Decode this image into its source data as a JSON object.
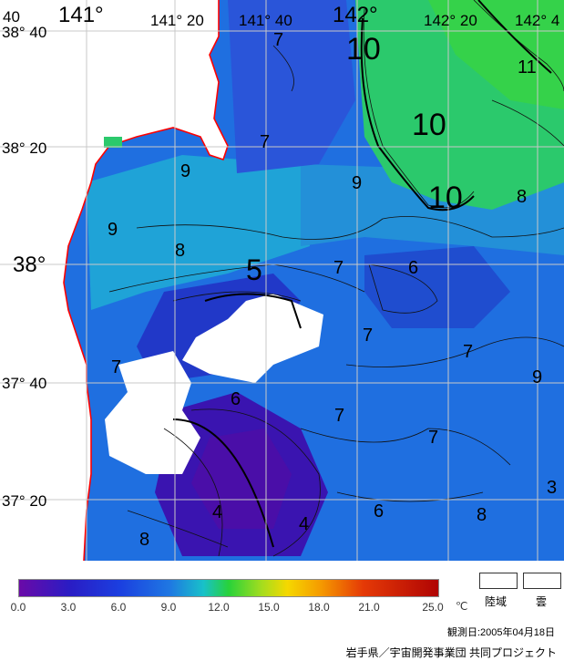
{
  "map": {
    "lon_labels": [
      "141°",
      "141° 20",
      "141° 40",
      "142°",
      "142° 20",
      "142° 4"
    ],
    "lat_labels": [
      "38° 40",
      "38° 20",
      "38°",
      "37° 40",
      "37° 20"
    ],
    "corner_label": "40",
    "contour_labels": [
      "10",
      "10",
      "10",
      "11",
      "9",
      "9",
      "9",
      "8",
      "8",
      "8",
      "7",
      "7",
      "7",
      "7",
      "7",
      "7",
      "7",
      "7",
      "6",
      "6",
      "6",
      "5",
      "4",
      "4",
      "3",
      "9",
      "8"
    ]
  },
  "legend": {
    "ticks": [
      "0.0",
      "3.0",
      "6.0",
      "9.0",
      "12.0",
      "15.0",
      "18.0",
      "21.0",
      "25.0"
    ],
    "unit": "℃",
    "land_label": "陸域",
    "cloud_label": "雲",
    "min_value": 0.0,
    "max_value": 25.0
  },
  "observation_date": "観測日:2005年04月18日",
  "credit": "岩手県／宇宙開発事業団 共同プロジェクト",
  "colors": {
    "coast": "#ff0000",
    "grid": "#c8c8c8",
    "land": "#ffffff",
    "cloud": "#ffffff"
  }
}
